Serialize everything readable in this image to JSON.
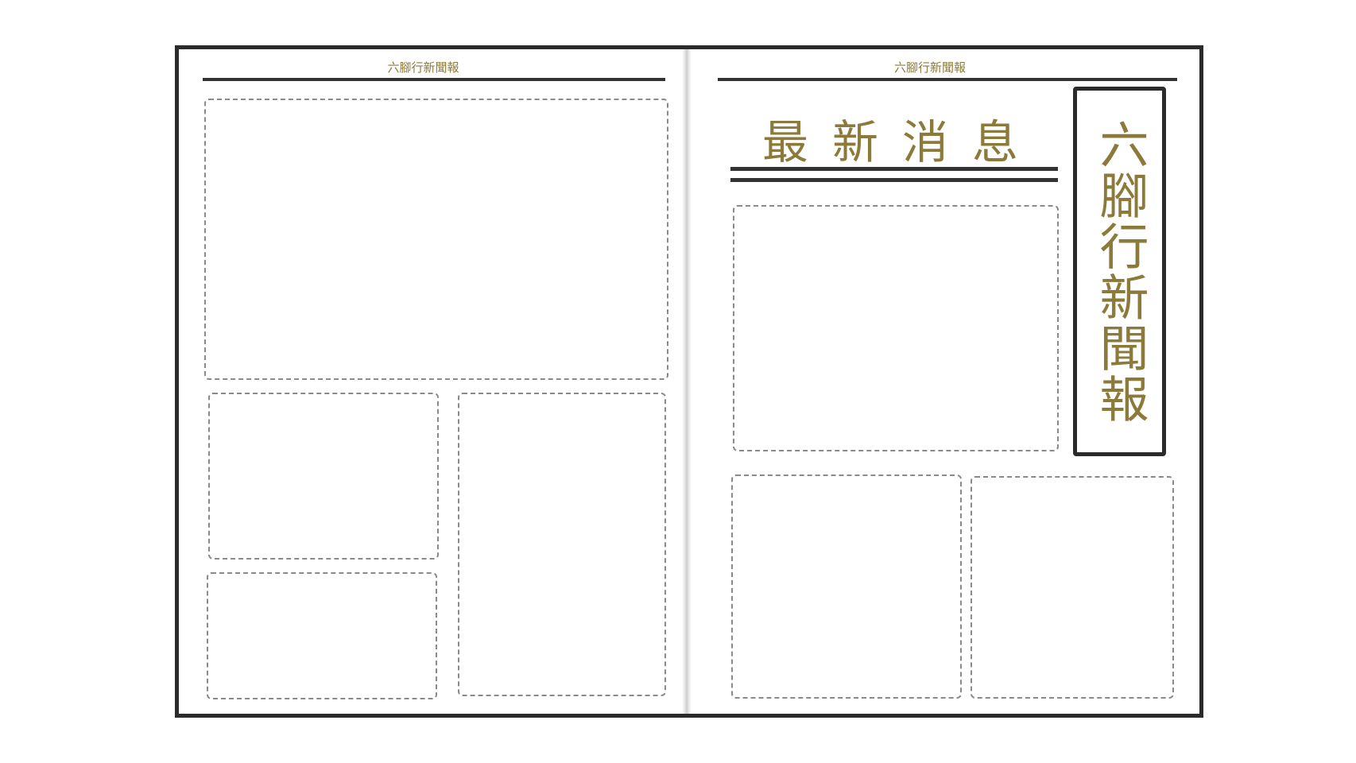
{
  "left_page": {
    "running_head": "六腳行新聞報"
  },
  "right_page": {
    "running_head": "六腳行新聞報",
    "headline": "最新消息",
    "masthead": "六腳行新聞報"
  },
  "colors": {
    "accent_gold": "#8c7a3a",
    "border": "#2b2b2b",
    "dash": "#8a8a8a"
  }
}
